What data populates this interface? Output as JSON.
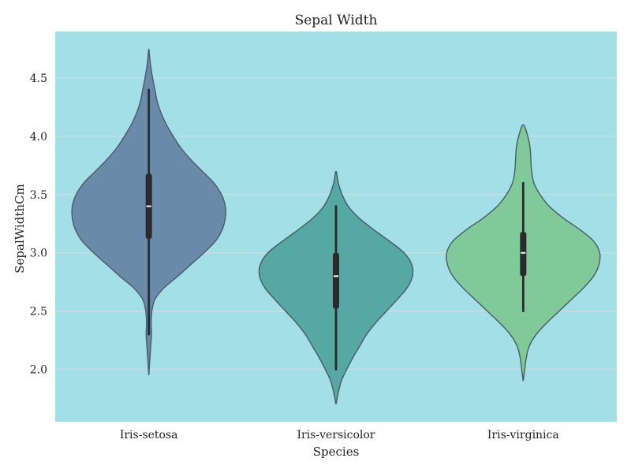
{
  "chart_data": {
    "type": "violin",
    "title": "Sepal Width",
    "xlabel": "Species",
    "ylabel": "SepalWidthCm",
    "ylim": [
      1.55,
      4.9
    ],
    "yticks": [
      "2.0",
      "2.5",
      "3.0",
      "3.5",
      "4.0",
      "4.5"
    ],
    "ytick_values": [
      2.0,
      2.5,
      3.0,
      3.5,
      4.0,
      4.5
    ],
    "grid": "horizontal",
    "background": "#a2dfe6",
    "categories": [
      "Iris-setosa",
      "Iris-versicolor",
      "Iris-virginica"
    ],
    "series": [
      {
        "category": "Iris-setosa",
        "color": "#6a8aa9",
        "whisker_low": 2.3,
        "q1": 3.12,
        "median": 3.4,
        "q3": 3.68,
        "whisker_high": 4.4,
        "density": [
          [
            1.95,
            0.0
          ],
          [
            2.05,
            0.01
          ],
          [
            2.2,
            0.025
          ],
          [
            2.3,
            0.035
          ],
          [
            2.4,
            0.03
          ],
          [
            2.5,
            0.04
          ],
          [
            2.6,
            0.08
          ],
          [
            2.7,
            0.2
          ],
          [
            2.8,
            0.38
          ],
          [
            2.9,
            0.55
          ],
          [
            3.0,
            0.72
          ],
          [
            3.1,
            0.87
          ],
          [
            3.2,
            0.96
          ],
          [
            3.3,
            1.0
          ],
          [
            3.4,
            1.0
          ],
          [
            3.5,
            0.95
          ],
          [
            3.6,
            0.85
          ],
          [
            3.7,
            0.7
          ],
          [
            3.8,
            0.55
          ],
          [
            3.9,
            0.42
          ],
          [
            4.0,
            0.32
          ],
          [
            4.1,
            0.23
          ],
          [
            4.2,
            0.16
          ],
          [
            4.3,
            0.11
          ],
          [
            4.4,
            0.08
          ],
          [
            4.5,
            0.05
          ],
          [
            4.6,
            0.025
          ],
          [
            4.7,
            0.008
          ],
          [
            4.75,
            0.0
          ]
        ]
      },
      {
        "category": "Iris-versicolor",
        "color": "#56a8a6",
        "whisker_low": 2.0,
        "q1": 2.52,
        "median": 2.8,
        "q3": 3.0,
        "whisker_high": 3.4,
        "density": [
          [
            1.7,
            0.0
          ],
          [
            1.8,
            0.03
          ],
          [
            1.9,
            0.07
          ],
          [
            2.0,
            0.14
          ],
          [
            2.1,
            0.22
          ],
          [
            2.2,
            0.31
          ],
          [
            2.3,
            0.4
          ],
          [
            2.4,
            0.52
          ],
          [
            2.5,
            0.66
          ],
          [
            2.6,
            0.8
          ],
          [
            2.7,
            0.93
          ],
          [
            2.8,
            1.0
          ],
          [
            2.9,
            0.99
          ],
          [
            3.0,
            0.89
          ],
          [
            3.1,
            0.7
          ],
          [
            3.2,
            0.49
          ],
          [
            3.3,
            0.3
          ],
          [
            3.4,
            0.16
          ],
          [
            3.5,
            0.08
          ],
          [
            3.6,
            0.03
          ],
          [
            3.7,
            0.0
          ]
        ]
      },
      {
        "category": "Iris-virginica",
        "color": "#7fca98",
        "whisker_low": 2.5,
        "q1": 2.8,
        "median": 3.0,
        "q3": 3.18,
        "whisker_high": 3.6,
        "density": [
          [
            1.9,
            0.0
          ],
          [
            2.0,
            0.02
          ],
          [
            2.1,
            0.04
          ],
          [
            2.2,
            0.08
          ],
          [
            2.3,
            0.17
          ],
          [
            2.4,
            0.31
          ],
          [
            2.5,
            0.47
          ],
          [
            2.6,
            0.63
          ],
          [
            2.7,
            0.79
          ],
          [
            2.8,
            0.92
          ],
          [
            2.9,
            0.99
          ],
          [
            3.0,
            1.0
          ],
          [
            3.1,
            0.92
          ],
          [
            3.2,
            0.74
          ],
          [
            3.3,
            0.52
          ],
          [
            3.4,
            0.34
          ],
          [
            3.5,
            0.22
          ],
          [
            3.6,
            0.14
          ],
          [
            3.7,
            0.11
          ],
          [
            3.8,
            0.1
          ],
          [
            3.9,
            0.09
          ],
          [
            4.0,
            0.06
          ],
          [
            4.1,
            0.0
          ]
        ]
      }
    ]
  }
}
